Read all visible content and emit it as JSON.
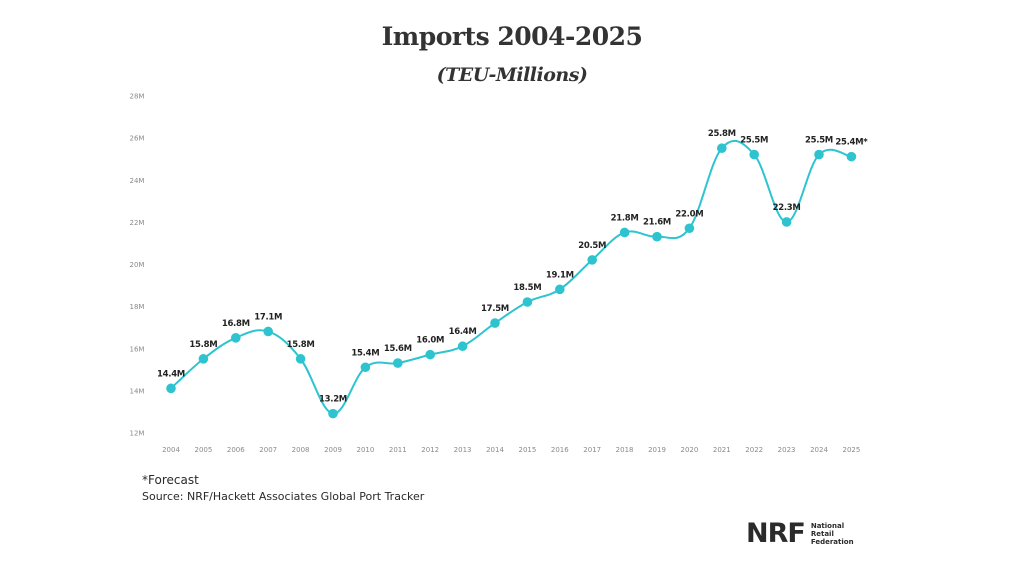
{
  "chart_data": {
    "type": "line",
    "title": "Imports 2004-2025",
    "subtitle": "(TEU-Millions)",
    "xlabel": "",
    "ylabel": "",
    "ylim": [
      12,
      28
    ],
    "yticks": [
      "12M",
      "14M",
      "16M",
      "18M",
      "20M",
      "22M",
      "24M",
      "26M",
      "28M"
    ],
    "ytick_values": [
      12,
      14,
      16,
      18,
      20,
      22,
      24,
      26,
      28
    ],
    "categories": [
      "2004",
      "2005",
      "2006",
      "2007",
      "2008",
      "2009",
      "2010",
      "2011",
      "2012",
      "2013",
      "2014",
      "2015",
      "2016",
      "2017",
      "2018",
      "2019",
      "2020",
      "2021",
      "2022",
      "2023",
      "2024",
      "2025"
    ],
    "series": [
      {
        "name": "Imports",
        "values": [
          14.4,
          15.8,
          16.8,
          17.1,
          15.8,
          13.2,
          15.4,
          15.6,
          16.0,
          16.4,
          17.5,
          18.5,
          19.1,
          20.5,
          21.8,
          21.6,
          22.0,
          25.8,
          25.5,
          22.3,
          25.5,
          25.4
        ],
        "labels": [
          "14.4M",
          "15.8M",
          "16.8M",
          "17.1M",
          "15.8M",
          "13.2M",
          "15.4M",
          "15.6M",
          "16.0M",
          "16.4M",
          "17.5M",
          "18.5M",
          "19.1M",
          "20.5M",
          "21.8M",
          "21.6M",
          "22.0M",
          "25.8M",
          "25.5M",
          "22.3M",
          "25.5M",
          "25.4M*"
        ],
        "color": "#2ec4cf"
      }
    ],
    "grid": false,
    "legend": "none"
  },
  "footer": {
    "forecast_note": "*Forecast",
    "source": "Source: NRF/Hackett Associates Global Port Tracker"
  },
  "logo": {
    "mark": "NRF",
    "line1": "National",
    "line2": "Retail",
    "line3": "Federation"
  }
}
